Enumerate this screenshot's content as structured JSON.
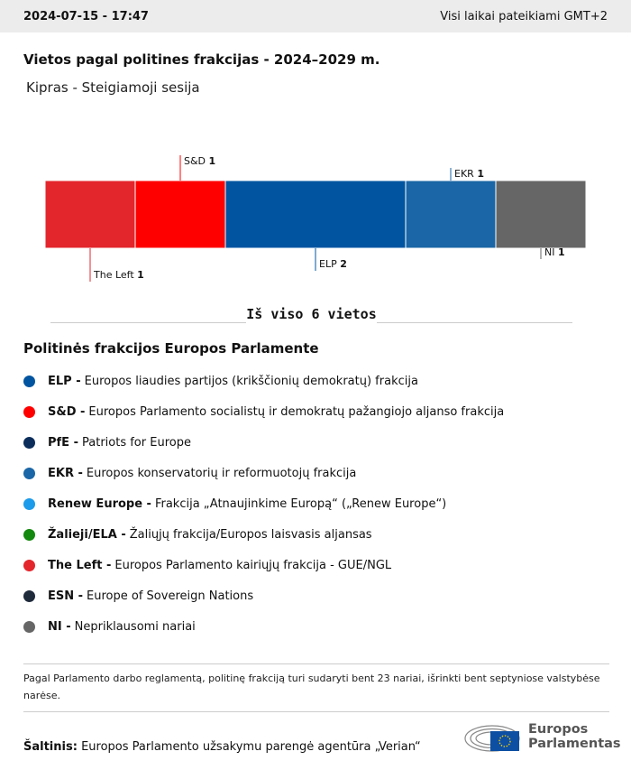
{
  "header": {
    "datetime": "2024-07-15 - 17:47",
    "timezone_note": "Visi laikai pateikiami GMT+2"
  },
  "title": "Vietos pagal politines frakcijas - 2024–2029 m.",
  "subtitle": "Kipras - Steigiamoji sesija",
  "chart_data": {
    "type": "bar",
    "orientation": "stacked-horizontal",
    "categories": [
      "The Left",
      "S&D",
      "ELP",
      "EKR",
      "NI"
    ],
    "values": [
      1,
      1,
      2,
      1,
      1
    ],
    "colors": [
      "#e3262c",
      "#ff0000",
      "#0054a0",
      "#1a66a6",
      "#666666"
    ],
    "label_positions": [
      "below",
      "above",
      "below",
      "above",
      "below"
    ],
    "total_label": "Iš viso 6 vietos"
  },
  "legend": {
    "heading": "Politinės frakcijos Europos Parlamente",
    "items": [
      {
        "abbr": "ELP -",
        "name": "Europos liaudies partijos (krikščionių demokratų) frakcija",
        "color": "#0054a0"
      },
      {
        "abbr": "S&D -",
        "name": "Europos Parlamento socialistų ir demokratų pažangiojo aljanso frakcija",
        "color": "#ff0000"
      },
      {
        "abbr": "PfE -",
        "name": "Patriots for Europe",
        "color": "#0b2d5b"
      },
      {
        "abbr": "EKR -",
        "name": "Europos konservatorių ir reformuotojų frakcija",
        "color": "#1a66a6"
      },
      {
        "abbr": "Renew Europe -",
        "name": "Frakcija „Atnaujinkime Europą“ („Renew Europe“)",
        "color": "#1c9bea"
      },
      {
        "abbr": "Žalieji/ELA -",
        "name": "Žaliųjų frakcija/Europos laisvasis aljansas",
        "color": "#13890f"
      },
      {
        "abbr": "The Left -",
        "name": "Europos Parlamento kairiųjų frakcija - GUE/NGL",
        "color": "#e3262c"
      },
      {
        "abbr": "ESN -",
        "name": "Europe of Sovereign Nations",
        "color": "#1f2a3b"
      },
      {
        "abbr": "NI -",
        "name": "Nepriklausomi nariai",
        "color": "#666666"
      }
    ]
  },
  "note": "Pagal Parlamento darbo reglamentą, politinę frakciją turi sudaryti bent 23 nariai, išrinkti bent septyniose valstybėse narėse.",
  "source": {
    "label": "Šaltinis:",
    "text": "Europos Parlamento užsakymu parengė agentūra „Verian“"
  },
  "logo": {
    "line1": "Europos",
    "line2": "Parlamentas"
  }
}
